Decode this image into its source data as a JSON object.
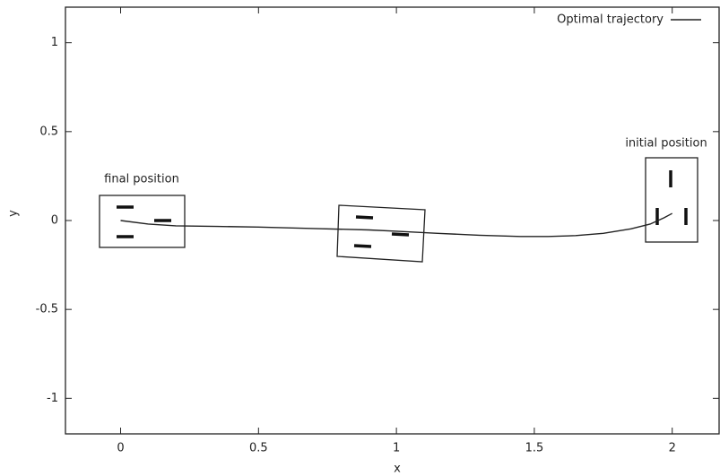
{
  "chart_data": {
    "type": "line",
    "xlabel": "x",
    "ylabel": "y",
    "x": [
      0,
      0.1,
      0.2,
      0.35,
      0.5,
      0.7,
      0.9,
      1.0,
      1.15,
      1.3,
      1.45,
      1.55,
      1.65,
      1.75,
      1.85,
      1.92,
      1.97,
      2.0
    ],
    "series": [
      {
        "name": "Optimal trajectory",
        "color": "#222222",
        "values": [
          0,
          -0.02,
          -0.03,
          -0.033,
          -0.037,
          -0.045,
          -0.053,
          -0.06,
          -0.072,
          -0.083,
          -0.09,
          -0.09,
          -0.085,
          -0.072,
          -0.047,
          -0.02,
          0.015,
          0.04
        ]
      }
    ],
    "xlim": [
      -0.2,
      2.17
    ],
    "ylim": [
      -1.2,
      1.2
    ],
    "xticks": [
      0,
      0.5,
      1,
      1.5,
      2
    ],
    "yticks": [
      -1,
      -0.5,
      0,
      0.5,
      1
    ],
    "annotations": [
      "final position",
      "initial position"
    ],
    "legend": "upper right",
    "grid": false
  }
}
